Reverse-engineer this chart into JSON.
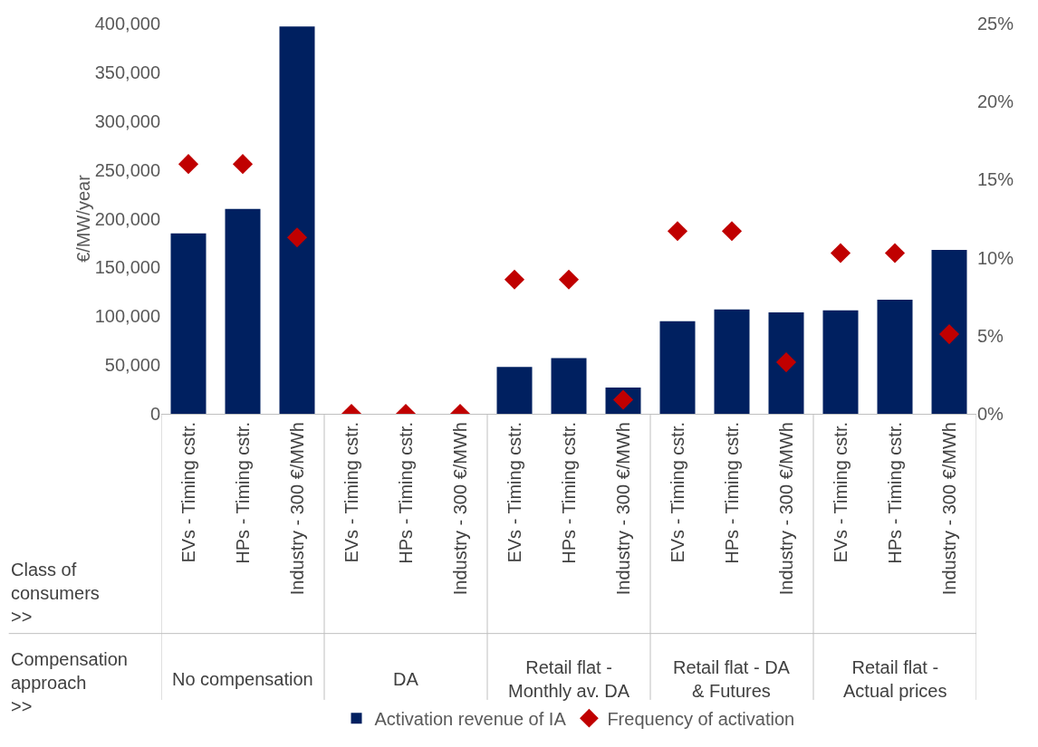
{
  "chart_data": {
    "type": "bar",
    "ylabel": "€/MW/year",
    "categories": [
      "EVs - Timing cstr.",
      "HPs - Timing cstr.",
      "Industry - 300 €/MWh",
      "EVs - Timing cstr.",
      "HPs - Timing cstr.",
      "Industry - 300 €/MWh",
      "EVs - Timing cstr.",
      "HPs - Timing cstr.",
      "Industry - 300 €/MWh",
      "EVs - Timing cstr.",
      "HPs - Timing cstr.",
      "Industry - 300 €/MWh",
      "EVs - Timing cstr.",
      "HPs - Timing cstr.",
      "Industry - 300 €/MWh"
    ],
    "series": [
      {
        "name": "Activation revenue of IA",
        "color": "#002060",
        "values": [
          185000,
          210000,
          397000,
          0,
          0,
          0,
          48000,
          57000,
          27000,
          95000,
          107000,
          104000,
          106000,
          117000,
          168000
        ]
      },
      {
        "name": "Frequency of activation",
        "type": "scatter",
        "axis": "y2",
        "marker": "diamond",
        "color": "#c00000",
        "values": [
          16,
          16,
          11.3,
          0,
          0,
          0,
          8.6,
          8.6,
          0.9,
          11.7,
          11.7,
          3.3,
          10.3,
          10.3,
          5.1
        ]
      }
    ],
    "ylim": [
      0,
      400000
    ],
    "yticks": [
      0,
      {
        "value": 50000,
        "label": "50,000"
      },
      {
        "value": 100000,
        "label": "100,000"
      },
      {
        "value": 150000,
        "label": "150,000"
      },
      {
        "value": 200000,
        "label": "200,000"
      },
      {
        "value": 250000,
        "label": "250,000"
      },
      {
        "value": 300000,
        "label": "300,000"
      },
      {
        "value": 350000,
        "label": "350,000"
      },
      {
        "value": 400000,
        "label": "400,000"
      }
    ],
    "y2lim": [
      0,
      25
    ],
    "y2ticks": [
      {
        "value": 0,
        "label": "0%"
      },
      {
        "value": 5,
        "label": "5%"
      },
      {
        "value": 10,
        "label": "10%"
      },
      {
        "value": 15,
        "label": "15%"
      },
      {
        "value": 20,
        "label": "20%"
      },
      {
        "value": 25,
        "label": "25%"
      }
    ],
    "annotations": [
      "Class of consumers >>",
      "Compensation approach >>",
      "No compensation",
      "DA",
      "Retail flat - Monthly av. DA",
      "Retail flat - DA & Futures",
      "Retail flat - Actual prices"
    ],
    "grid": false,
    "legend": "bottom"
  }
}
